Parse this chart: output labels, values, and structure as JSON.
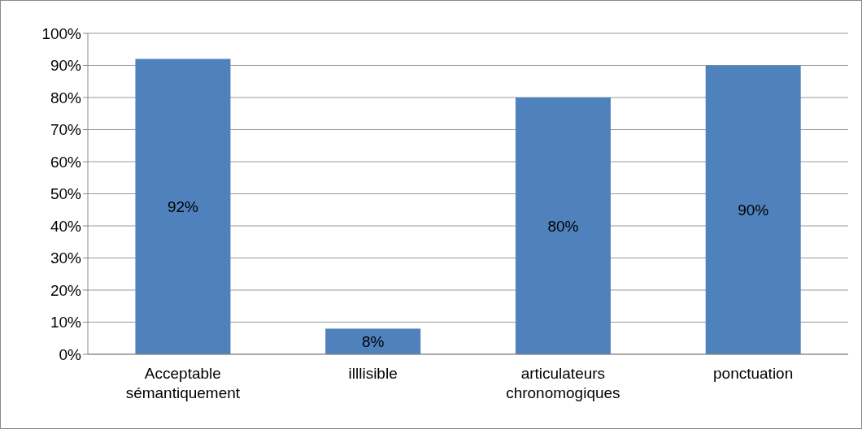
{
  "chart_data": {
    "type": "bar",
    "categories": [
      "Acceptable sémantiquement",
      "illlisible",
      "articulateurs chronomogiques",
      "ponctuation"
    ],
    "values": [
      92,
      8,
      80,
      90
    ],
    "value_labels": [
      "92%",
      "8%",
      "80%",
      "90%"
    ],
    "color": "#4f81bd",
    "ylim": [
      0,
      100
    ],
    "yticks": [
      {
        "value": 0,
        "label": "0%"
      },
      {
        "value": 10,
        "label": "10%"
      },
      {
        "value": 20,
        "label": "20%"
      },
      {
        "value": 30,
        "label": "30%"
      },
      {
        "value": 40,
        "label": "40%"
      },
      {
        "value": 50,
        "label": "50%"
      },
      {
        "value": 60,
        "label": "60%"
      },
      {
        "value": 70,
        "label": "70%"
      },
      {
        "value": 80,
        "label": "80%"
      },
      {
        "value": 90,
        "label": "90%"
      },
      {
        "value": 100,
        "label": "100%"
      }
    ],
    "grid": "y"
  }
}
